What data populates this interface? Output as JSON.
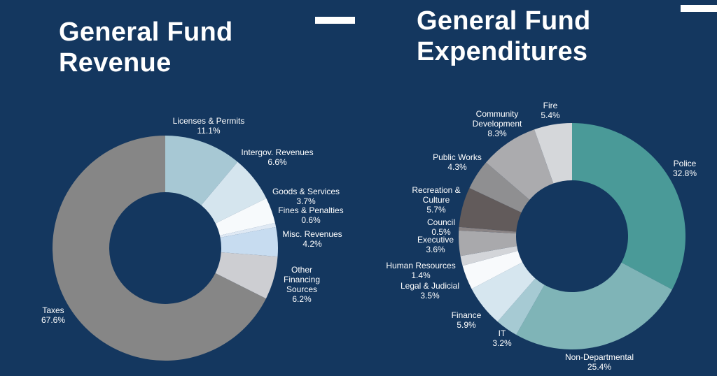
{
  "slide": {
    "background": "#14375f",
    "decor": [
      "white-dash-left",
      "white-dash-right"
    ]
  },
  "chart_data": [
    {
      "type": "pie",
      "variant": "donut",
      "title": "General Fund Revenue",
      "title_lines": [
        "General Fund",
        "Revenue"
      ],
      "unit": "%",
      "start": "12 o'clock, clockwise",
      "slices": [
        {
          "label": "Licenses & Permits",
          "label_lines": [
            "Licenses & Permits"
          ],
          "value": 11.1,
          "display": "11.1%",
          "color": "#a7c8d4"
        },
        {
          "label": "Intergov. Revenues",
          "label_lines": [
            "Intergov. Revenues"
          ],
          "value": 6.6,
          "display": "6.6%",
          "color": "#d5e5ee"
        },
        {
          "label": "Goods & Services",
          "label_lines": [
            "Goods & Services"
          ],
          "value": 3.7,
          "display": "3.7%",
          "color": "#f7fafc"
        },
        {
          "label": "Fines & Penalties",
          "label_lines": [
            "Fines & Penalties"
          ],
          "value": 0.6,
          "display": "0.6%",
          "color": "#dfe9f4"
        },
        {
          "label": "Misc. Revenues",
          "label_lines": [
            "Misc. Revenues"
          ],
          "value": 4.2,
          "display": "4.2%",
          "color": "#c7dcf0"
        },
        {
          "label": "Other Financing Sources",
          "label_lines": [
            "Other",
            "Financing",
            "Sources"
          ],
          "value": 6.2,
          "display": "6.2%",
          "color": "#cdced2"
        },
        {
          "label": "Taxes",
          "label_lines": [
            "Taxes"
          ],
          "value": 67.6,
          "display": "67.6%",
          "color": "#868686"
        }
      ]
    },
    {
      "type": "pie",
      "variant": "donut",
      "title": "General Fund Expenditures",
      "title_lines": [
        "General Fund",
        "Expenditures"
      ],
      "unit": "%",
      "start": "12 o'clock, clockwise",
      "slices": [
        {
          "label": "Police",
          "label_lines": [
            "Police"
          ],
          "value": 32.8,
          "display": "32.8%",
          "color": "#4a9a98"
        },
        {
          "label": "Non-Departmental",
          "label_lines": [
            "Non-Departmental"
          ],
          "value": 25.4,
          "display": "25.4%",
          "color": "#7fb4b7"
        },
        {
          "label": "IT",
          "label_lines": [
            "IT"
          ],
          "value": 3.2,
          "display": "3.2%",
          "color": "#a6cad3"
        },
        {
          "label": "Finance",
          "label_lines": [
            "Finance"
          ],
          "value": 5.9,
          "display": "5.9%",
          "color": "#d6e6ef"
        },
        {
          "label": "Legal & Judicial",
          "label_lines": [
            "Legal & Judicial"
          ],
          "value": 3.5,
          "display": "3.5%",
          "color": "#f8fafc"
        },
        {
          "label": "Human Resources",
          "label_lines": [
            "Human Resources"
          ],
          "value": 1.4,
          "display": "1.4%",
          "color": "#d3d5d9"
        },
        {
          "label": "Executive",
          "label_lines": [
            "Executive"
          ],
          "value": 3.6,
          "display": "3.6%",
          "color": "#a9a9ac"
        },
        {
          "label": "Council",
          "label_lines": [
            "Council"
          ],
          "value": 0.5,
          "display": "0.5%",
          "color": "#8a8485"
        },
        {
          "label": "Recreation & Culture",
          "label_lines": [
            "Recreation &",
            "Culture"
          ],
          "value": 5.7,
          "display": "5.7%",
          "color": "#625b5b"
        },
        {
          "label": "Public Works",
          "label_lines": [
            "Public Works"
          ],
          "value": 4.3,
          "display": "4.3%",
          "color": "#8f8f91"
        },
        {
          "label": "Community Development",
          "label_lines": [
            "Community",
            "Development"
          ],
          "value": 8.3,
          "display": "8.3%",
          "color": "#ababae"
        },
        {
          "label": "Fire",
          "label_lines": [
            "Fire"
          ],
          "value": 5.4,
          "display": "5.4%",
          "color": "#d5d7da"
        }
      ]
    }
  ]
}
